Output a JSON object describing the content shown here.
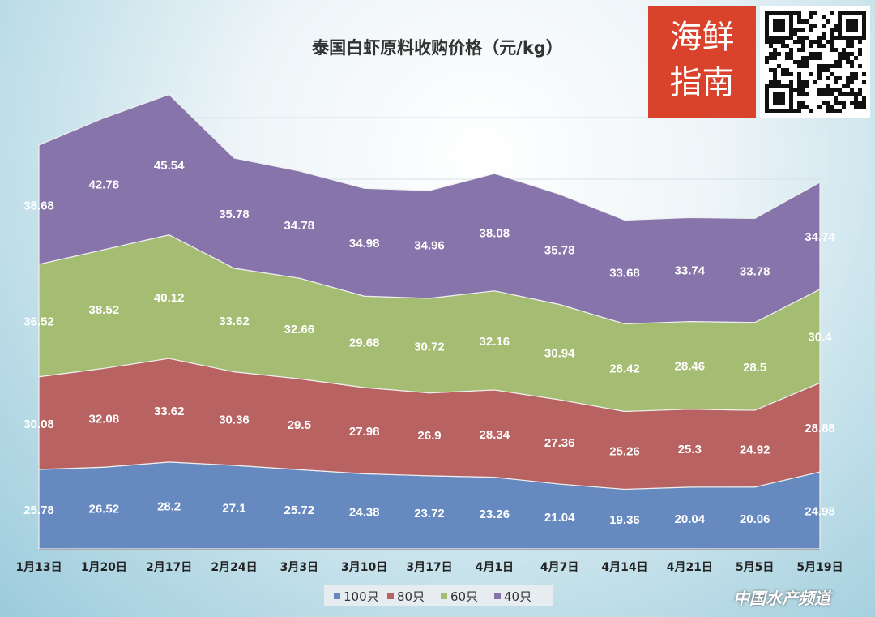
{
  "chart_data": {
    "type": "area",
    "stacked": true,
    "title": "泰国白虾原料收购价格（元/kg）",
    "categories": [
      "1月13日",
      "1月20日",
      "2月17日",
      "2月24日",
      "3月3日",
      "3月10日",
      "3月17日",
      "4月1日",
      "4月7日",
      "4月14日",
      "4月21日",
      "5月5日",
      "5月19日"
    ],
    "series": [
      {
        "name": "100只",
        "color": "#6689c0",
        "values": [
          25.78,
          26.52,
          28.2,
          27.1,
          25.72,
          24.38,
          23.72,
          23.26,
          21.04,
          19.36,
          20.04,
          20.06,
          24.98
        ]
      },
      {
        "name": "80只",
        "color": "#b86262",
        "values": [
          30.08,
          32.08,
          33.62,
          30.36,
          29.5,
          27.98,
          26.9,
          28.34,
          27.36,
          25.26,
          25.3,
          24.92,
          28.88
        ]
      },
      {
        "name": "60只",
        "color": "#a5bd73",
        "values": [
          36.52,
          38.52,
          40.12,
          33.62,
          32.66,
          29.68,
          30.72,
          32.16,
          30.94,
          28.42,
          28.46,
          28.5,
          30.4
        ]
      },
      {
        "name": "40只",
        "color": "#8674ab",
        "values": [
          38.68,
          42.78,
          45.54,
          35.78,
          34.78,
          34.98,
          34.96,
          38.08,
          35.78,
          33.68,
          33.74,
          33.78,
          34.74
        ]
      }
    ],
    "ylim": [
      0,
      140
    ],
    "grid": true,
    "legend": "bottom"
  },
  "logo_text": "海鲜指南",
  "watermark": "中国水产频道"
}
